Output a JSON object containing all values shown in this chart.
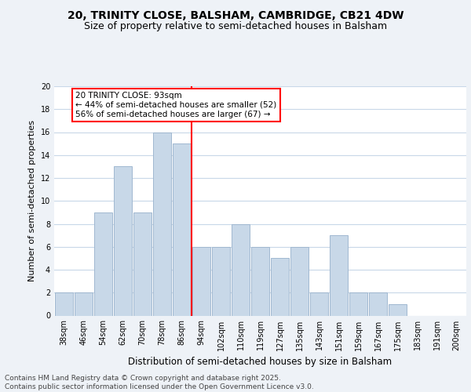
{
  "title_line1": "20, TRINITY CLOSE, BALSHAM, CAMBRIDGE, CB21 4DW",
  "title_line2": "Size of property relative to semi-detached houses in Balsham",
  "xlabel": "Distribution of semi-detached houses by size in Balsham",
  "ylabel": "Number of semi-detached properties",
  "categories": [
    "38sqm",
    "46sqm",
    "54sqm",
    "62sqm",
    "70sqm",
    "78sqm",
    "86sqm",
    "94sqm",
    "102sqm",
    "110sqm",
    "119sqm",
    "127sqm",
    "135sqm",
    "143sqm",
    "151sqm",
    "159sqm",
    "167sqm",
    "175sqm",
    "183sqm",
    "191sqm",
    "200sqm"
  ],
  "values": [
    2,
    2,
    9,
    13,
    9,
    16,
    15,
    6,
    6,
    8,
    6,
    5,
    6,
    2,
    7,
    2,
    2,
    1,
    0,
    0,
    0
  ],
  "bar_color": "#c8d8e8",
  "bar_edge_color": "#a0b8d0",
  "red_line_index": 7,
  "annotation_text": "20 TRINITY CLOSE: 93sqm\n← 44% of semi-detached houses are smaller (52)\n56% of semi-detached houses are larger (67) →",
  "annotation_box_color": "white",
  "annotation_box_edge_color": "red",
  "annotation_fontsize": 7.5,
  "ylim": [
    0,
    20
  ],
  "yticks": [
    0,
    2,
    4,
    6,
    8,
    10,
    12,
    14,
    16,
    18,
    20
  ],
  "background_color": "#eef2f7",
  "plot_bg_color": "white",
  "grid_color": "#c8d8e8",
  "footer_text": "Contains HM Land Registry data © Crown copyright and database right 2025.\nContains public sector information licensed under the Open Government Licence v3.0.",
  "title_fontsize": 10,
  "subtitle_fontsize": 9,
  "xlabel_fontsize": 8.5,
  "ylabel_fontsize": 8,
  "tick_fontsize": 7,
  "footer_fontsize": 6.5
}
